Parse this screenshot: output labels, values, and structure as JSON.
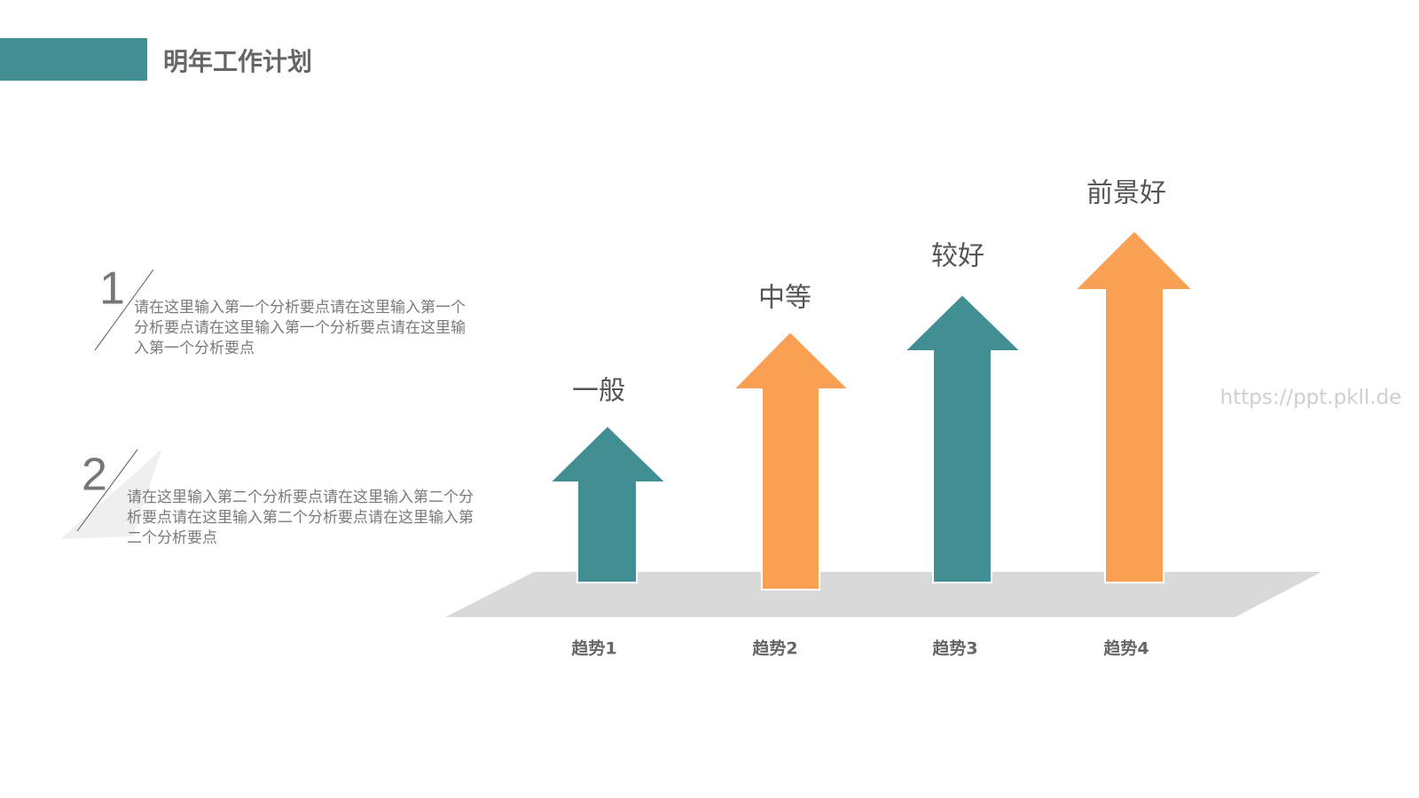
{
  "header": {
    "title": "明年工作计划"
  },
  "points": [
    {
      "number": "1",
      "lines": [
        "请在这里输入第一个分析要点请在这里输入第一个",
        "分析要点请在这里输入第一个分析要点请在这里输",
        "入第一个分析要点"
      ]
    },
    {
      "number": "2",
      "lines": [
        "请在这里输入第二个分析要点请在这里输入第二个分",
        "析要点请在这里输入第二个分析要点请在这里输入第",
        "二个分析要点"
      ]
    }
  ],
  "trends": [
    {
      "name": "趋势1",
      "level": "一般"
    },
    {
      "name": "趋势2",
      "level": "中等"
    },
    {
      "name": "趋势3",
      "level": "较好"
    },
    {
      "name": "趋势4",
      "level": "前景好"
    }
  ],
  "watermark": "https://ppt.pkll.de"
}
